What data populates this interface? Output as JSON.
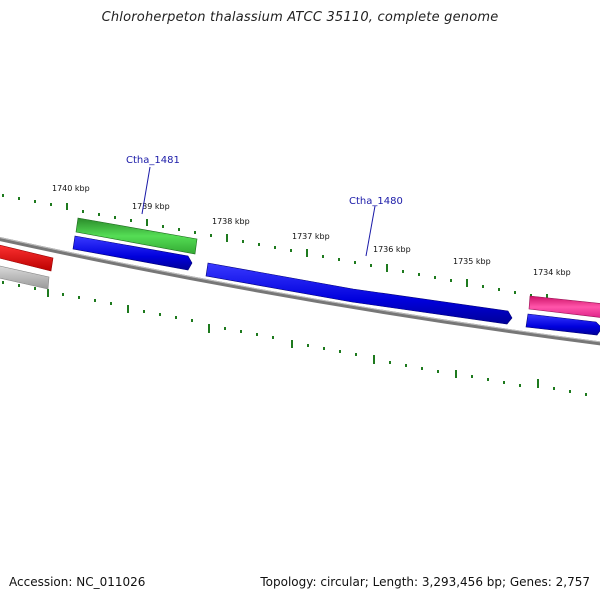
{
  "title": "Chloroherpeton thalassium ATCC 35110, complete genome",
  "accession": "Accession: NC_011026",
  "summary": "Topology: circular; Length: 3,293,456 bp; Genes: 2,757",
  "ticks": [
    "1740 kbp",
    "1739 kbp",
    "1738 kbp",
    "1737 kbp",
    "1736 kbp",
    "1735 kbp",
    "1734 kbp"
  ],
  "gene_labels": [
    "Ctha_1481",
    "Ctha_1480"
  ],
  "colors": {
    "backbone": "#7a7a7a",
    "tick": "#1e7a1e",
    "blue": "#1010e0",
    "green": "#33bb33",
    "red": "#ee1111",
    "magenta": "#ee2288",
    "gray": "#bbbbbb"
  }
}
